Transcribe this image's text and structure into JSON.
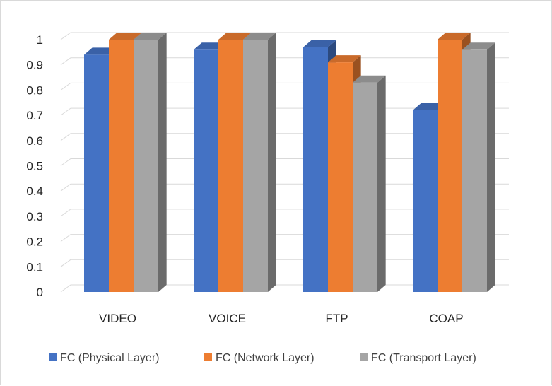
{
  "chart_data": {
    "type": "bar",
    "style": "3d-clustered-column",
    "categories": [
      "VIDEO",
      "VOICE",
      "FTP",
      "COAP"
    ],
    "series": [
      {
        "name": "FC (Physical Layer)",
        "values": [
          0.94,
          0.96,
          0.97,
          0.72
        ],
        "color": "#4472C4"
      },
      {
        "name": "FC (Network Layer)",
        "values": [
          1.0,
          1.0,
          0.91,
          1.0
        ],
        "color": "#ED7D31"
      },
      {
        "name": "FC (Transport Layer)",
        "values": [
          1.0,
          1.0,
          0.83,
          0.96
        ],
        "color": "#A5A5A5"
      }
    ],
    "y_ticks": [
      "0",
      "0.1",
      "0.2",
      "0.3",
      "0.4",
      "0.5",
      "0.6",
      "0.7",
      "0.8",
      "0.9",
      "1"
    ],
    "ylim": [
      0,
      1
    ],
    "grid": true,
    "legend_position": "bottom",
    "title": "",
    "xlabel": "",
    "ylabel": ""
  }
}
